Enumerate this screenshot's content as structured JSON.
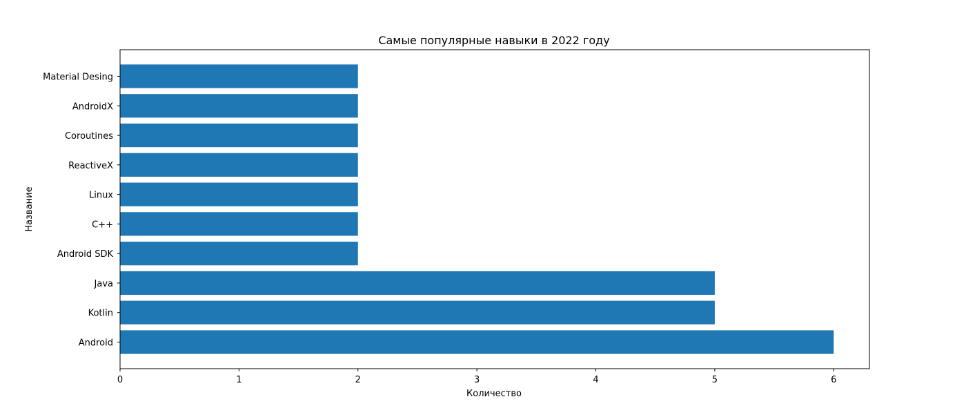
{
  "chart_data": {
    "type": "bar",
    "orientation": "horizontal",
    "title": "Самые популярные навыки в 2022 году",
    "xlabel": "Количество",
    "ylabel": "Название",
    "categories": [
      "Android",
      "Kotlin",
      "Java",
      "Android SDK",
      "C++",
      "Linux",
      "ReactiveX",
      "Coroutines",
      "AndroidX",
      "Material Desing"
    ],
    "values": [
      6,
      5,
      5,
      2,
      2,
      2,
      2,
      2,
      2,
      2
    ],
    "xlim": [
      0,
      6.3
    ],
    "xticks": [
      0,
      1,
      2,
      3,
      4,
      5,
      6
    ],
    "grid": false,
    "legend": false,
    "bar_color": "#1f77b4"
  }
}
